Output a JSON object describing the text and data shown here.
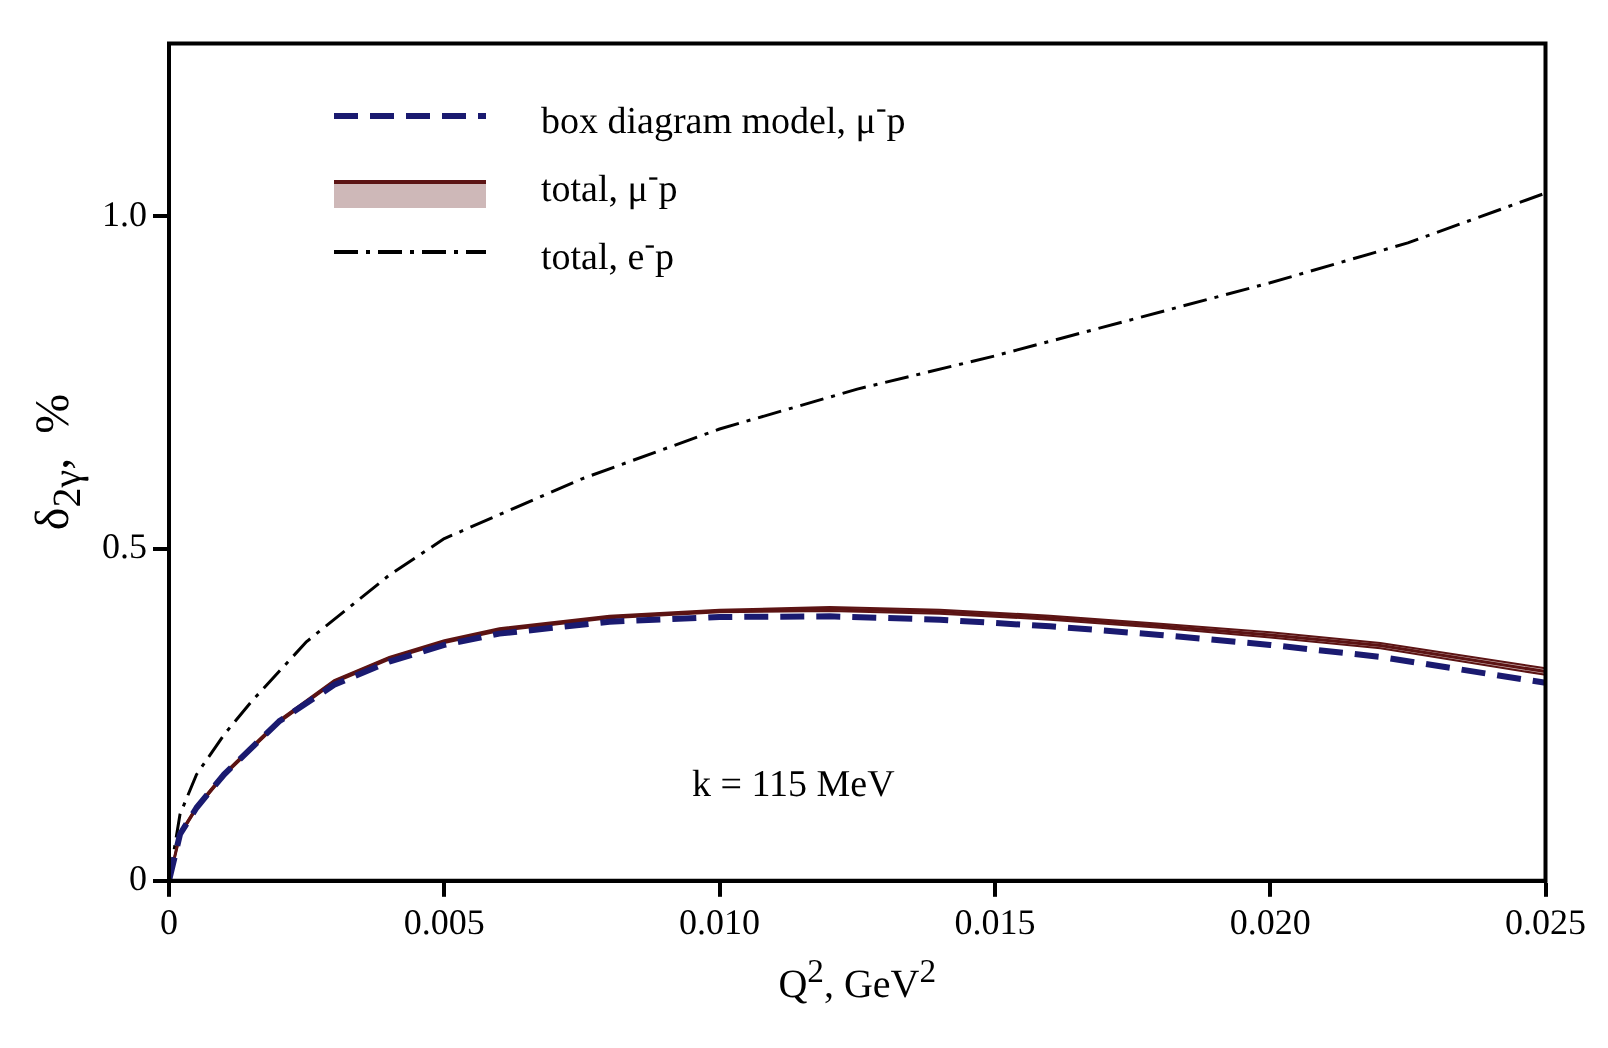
{
  "chart_data": {
    "type": "line",
    "xlabel": "Q$^{2}$, GeV$^{2}$",
    "ylabel": "δ$_{2γ}$,  %",
    "xlim": [
      0,
      0.025
    ],
    "xticks": [
      0,
      0.005,
      {
        "value": 0.01,
        "label": "0.010"
      },
      {
        "value": 0.015,
        "label": "0.015"
      },
      {
        "value": 0.02,
        "label": "0.020"
      },
      {
        "value": 0.025,
        "label": "0.025"
      }
    ],
    "ylim": [
      0,
      1.26
    ],
    "yticks": [
      0,
      0.5,
      {
        "value": 1,
        "label": "1.0"
      }
    ],
    "grid": false,
    "legend": "top left",
    "marker": "none",
    "annotations": [
      "k = 115 MeV"
    ],
    "series": [
      {
        "name": "box diagram model, μ$^{-}$p",
        "color": "#1a1a70",
        "line_style": "dashed",
        "x": [
          0,
          0.0002,
          0.0005,
          0.001,
          0.002,
          0.003,
          0.004,
          0.005,
          0.006,
          0.008,
          0.01,
          0.012,
          0.014,
          0.016,
          0.018,
          0.02,
          0.022,
          0.025
        ],
        "values": [
          0,
          0.07,
          0.11,
          0.16,
          0.24,
          0.295,
          0.33,
          0.355,
          0.372,
          0.39,
          0.397,
          0.398,
          0.393,
          0.383,
          0.37,
          0.355,
          0.337,
          0.298
        ]
      },
      {
        "name": "total, μ$^{-}$p",
        "color": "#5c1414",
        "line_style": "solid",
        "x": [
          0,
          0.0002,
          0.0005,
          0.001,
          0.002,
          0.003,
          0.004,
          0.005,
          0.006,
          0.008,
          0.01,
          0.012,
          0.014,
          0.016,
          0.018,
          0.02,
          0.022,
          0.025
        ],
        "values": [
          0,
          0.07,
          0.11,
          0.16,
          0.24,
          0.3,
          0.335,
          0.36,
          0.378,
          0.397,
          0.406,
          0.409,
          0.405,
          0.396,
          0.384,
          0.37,
          0.354,
          0.315
        ],
        "lower": [
          0,
          0.068,
          0.108,
          0.158,
          0.238,
          0.298,
          0.333,
          0.358,
          0.376,
          0.395,
          0.404,
          0.406,
          0.402,
          0.393,
          0.381,
          0.366,
          0.35,
          0.31
        ],
        "upper": [
          0,
          0.072,
          0.112,
          0.162,
          0.242,
          0.302,
          0.337,
          0.362,
          0.38,
          0.399,
          0.408,
          0.412,
          0.408,
          0.399,
          0.387,
          0.374,
          0.358,
          0.32
        ]
      },
      {
        "name": "total, e$^{-}$p",
        "color": "#000000",
        "line_style": "dashdot",
        "x": [
          0,
          0.0002,
          0.0005,
          0.001,
          0.0015,
          0.0025,
          0.004,
          0.005,
          0.0075,
          0.01,
          0.0125,
          0.015,
          0.0175,
          0.02,
          0.0225,
          0.025
        ],
        "values": [
          0,
          0.1,
          0.16,
          0.22,
          0.27,
          0.36,
          0.46,
          0.515,
          0.605,
          0.68,
          0.74,
          0.79,
          0.845,
          0.9,
          0.96,
          1.035
        ]
      }
    ]
  }
}
